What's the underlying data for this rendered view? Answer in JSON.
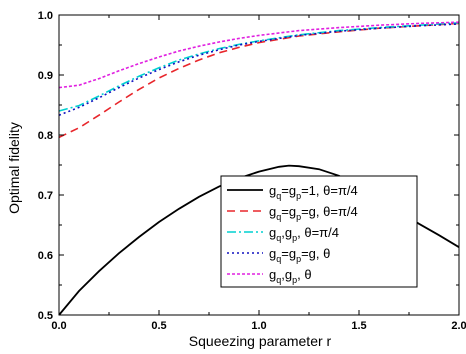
{
  "chart_data": {
    "type": "line",
    "title": "",
    "xlabel": "Squeezing parameter r",
    "ylabel": "Optimal fidelity",
    "xlim": [
      0.0,
      2.0
    ],
    "ylim": [
      0.5,
      1.0
    ],
    "x_ticks": [
      "0.0",
      "0.5",
      "1.0",
      "1.5",
      "2.0"
    ],
    "y_ticks": [
      "0.5",
      "0.6",
      "0.7",
      "0.8",
      "0.9",
      "1.0"
    ],
    "grid": false,
    "legend_position": "bottom-right",
    "series": [
      {
        "name": "g_q=g_p=1, θ=π/4",
        "legend": [
          [
            "g",
            "n"
          ],
          [
            "q",
            "s"
          ],
          [
            "=g",
            "n"
          ],
          [
            "p",
            "s"
          ],
          [
            "=1, θ=π/4",
            "n"
          ]
        ],
        "color": "#000000",
        "dash": "solid",
        "x": [
          0.0,
          0.1,
          0.2,
          0.3,
          0.4,
          0.5,
          0.6,
          0.7,
          0.8,
          0.9,
          1.0,
          1.1,
          1.15,
          1.2,
          1.3,
          1.4,
          1.5,
          1.6,
          1.7,
          1.8,
          1.9,
          2.0
        ],
        "y": [
          0.5,
          0.54,
          0.573,
          0.603,
          0.63,
          0.655,
          0.677,
          0.697,
          0.714,
          0.728,
          0.739,
          0.747,
          0.749,
          0.748,
          0.743,
          0.732,
          0.714,
          0.694,
          0.672,
          0.652,
          0.633,
          0.613
        ]
      },
      {
        "name": "g_q=g_p=g, θ=π/4",
        "legend": [
          [
            "g",
            "n"
          ],
          [
            "q",
            "s"
          ],
          [
            "=g",
            "n"
          ],
          [
            "p",
            "s"
          ],
          [
            "=g, θ=π/4",
            "n"
          ]
        ],
        "color": "#e8262b",
        "dash": "8,5",
        "x": [
          0.0,
          0.1,
          0.2,
          0.3,
          0.4,
          0.5,
          0.6,
          0.7,
          0.8,
          0.9,
          1.0,
          1.2,
          1.4,
          1.6,
          1.8,
          2.0
        ],
        "y": [
          0.796,
          0.812,
          0.833,
          0.855,
          0.876,
          0.895,
          0.911,
          0.925,
          0.937,
          0.946,
          0.954,
          0.965,
          0.972,
          0.978,
          0.982,
          0.986
        ]
      },
      {
        "name": "g_q,g_p, θ=π/4",
        "legend": [
          [
            "g",
            "n"
          ],
          [
            "q",
            "s"
          ],
          [
            ",g",
            "n"
          ],
          [
            "p",
            "s"
          ],
          [
            ", θ=π/4",
            "n"
          ]
        ],
        "color": "#00d0d0",
        "dash": "9,3,2,3",
        "x": [
          0.0,
          0.1,
          0.2,
          0.3,
          0.4,
          0.5,
          0.6,
          0.7,
          0.8,
          0.9,
          1.0,
          1.2,
          1.4,
          1.6,
          1.8,
          2.0
        ],
        "y": [
          0.84,
          0.849,
          0.865,
          0.882,
          0.898,
          0.912,
          0.925,
          0.935,
          0.944,
          0.951,
          0.957,
          0.967,
          0.974,
          0.979,
          0.983,
          0.987
        ]
      },
      {
        "name": "g_q=g_p=g, θ",
        "legend": [
          [
            "g",
            "n"
          ],
          [
            "q",
            "s"
          ],
          [
            "=g",
            "n"
          ],
          [
            "p",
            "s"
          ],
          [
            "=g, θ",
            "n"
          ]
        ],
        "color": "#1010c0",
        "dash": "2,3",
        "x": [
          0.0,
          0.1,
          0.2,
          0.3,
          0.4,
          0.5,
          0.6,
          0.7,
          0.8,
          0.9,
          1.0,
          1.2,
          1.4,
          1.6,
          1.8,
          2.0
        ],
        "y": [
          0.833,
          0.846,
          0.862,
          0.879,
          0.895,
          0.909,
          0.922,
          0.933,
          0.942,
          0.95,
          0.956,
          0.966,
          0.973,
          0.978,
          0.982,
          0.985
        ]
      },
      {
        "name": "g_q,g_p, θ",
        "legend": [
          [
            "g",
            "n"
          ],
          [
            "q",
            "s"
          ],
          [
            ",g",
            "n"
          ],
          [
            "p",
            "s"
          ],
          [
            ", θ",
            "n"
          ]
        ],
        "color": "#e020e0",
        "dash": "3,2",
        "x": [
          0.0,
          0.1,
          0.2,
          0.3,
          0.4,
          0.5,
          0.6,
          0.7,
          0.8,
          0.9,
          1.0,
          1.2,
          1.4,
          1.6,
          1.8,
          2.0
        ],
        "y": [
          0.879,
          0.883,
          0.894,
          0.907,
          0.919,
          0.93,
          0.94,
          0.948,
          0.955,
          0.961,
          0.966,
          0.974,
          0.979,
          0.983,
          0.986,
          0.988
        ]
      }
    ]
  }
}
